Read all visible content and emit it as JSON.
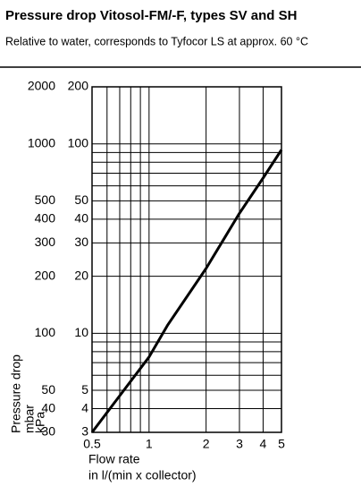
{
  "chart_data": {
    "type": "line",
    "title": "Pressure drop Vitosol-FM/-F, types SV and SH",
    "subtitle": "Relative to water, corresponds to Tyfocor LS at approx. 60 °C",
    "axis_title": "Pressure drop",
    "ylabel": "kPa",
    "y2label": "mbar",
    "xlabel": "Flow rate",
    "xlabel_unit": "in l/(min x collector)",
    "x": [
      0.5,
      1,
      1.25,
      2,
      3,
      4,
      5
    ],
    "values": [
      3,
      7.5,
      11,
      22,
      43,
      66,
      93
    ],
    "color": "#000000",
    "xlog": true,
    "ylog": true,
    "xlim": [
      0.5,
      5
    ],
    "xticks": [
      0.5,
      1,
      2,
      3,
      4,
      5
    ],
    "ylim": [
      3,
      200
    ],
    "yticks": [
      3,
      4,
      5,
      10,
      20,
      30,
      40,
      50,
      100,
      200
    ],
    "y2lim": [
      30,
      2000
    ],
    "y2ticks": [
      30,
      40,
      50,
      100,
      200,
      300,
      400,
      500,
      1000,
      2000
    ],
    "x_grid": [
      0.5,
      0.6,
      0.7,
      0.8,
      0.9,
      1,
      2,
      3,
      4,
      5
    ],
    "y_grid": [
      3,
      4,
      5,
      6,
      7,
      8,
      9,
      10,
      20,
      30,
      40,
      50,
      60,
      70,
      80,
      90,
      100,
      200
    ]
  }
}
